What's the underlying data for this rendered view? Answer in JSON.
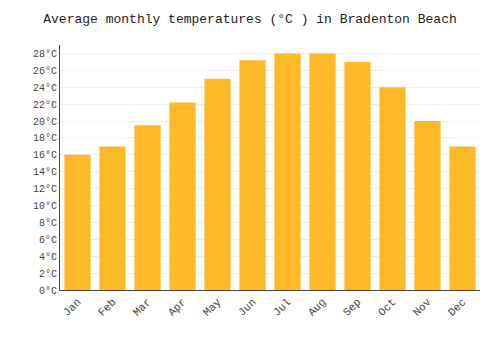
{
  "chart_data": {
    "type": "bar",
    "title": "Average monthly temperatures (°C ) in Bradenton Beach",
    "categories": [
      "Jan",
      "Feb",
      "Mar",
      "Apr",
      "May",
      "Jun",
      "Jul",
      "Aug",
      "Sep",
      "Oct",
      "Nov",
      "Dec"
    ],
    "values": [
      16.0,
      17.0,
      19.5,
      22.2,
      25.0,
      27.2,
      28.0,
      28.0,
      27.0,
      24.0,
      20.0,
      17.0
    ],
    "color": "#FDB927",
    "ylim": [
      0,
      29
    ],
    "yticks": [
      {
        "value": 0,
        "label": "0°C"
      },
      {
        "value": 2,
        "label": "2°C"
      },
      {
        "value": 4,
        "label": "4°C"
      },
      {
        "value": 6,
        "label": "6°C"
      },
      {
        "value": 8,
        "label": "8°C"
      },
      {
        "value": 10,
        "label": "10°C"
      },
      {
        "value": 12,
        "label": "12°C"
      },
      {
        "value": 14,
        "label": "14°C"
      },
      {
        "value": 16,
        "label": "16°C"
      },
      {
        "value": 18,
        "label": "18°C"
      },
      {
        "value": 20,
        "label": "20°C"
      },
      {
        "value": 22,
        "label": "22°C"
      },
      {
        "value": 24,
        "label": "24°C"
      },
      {
        "value": 26,
        "label": "26°C"
      },
      {
        "value": 28,
        "label": "28°C"
      }
    ],
    "grid": true
  }
}
